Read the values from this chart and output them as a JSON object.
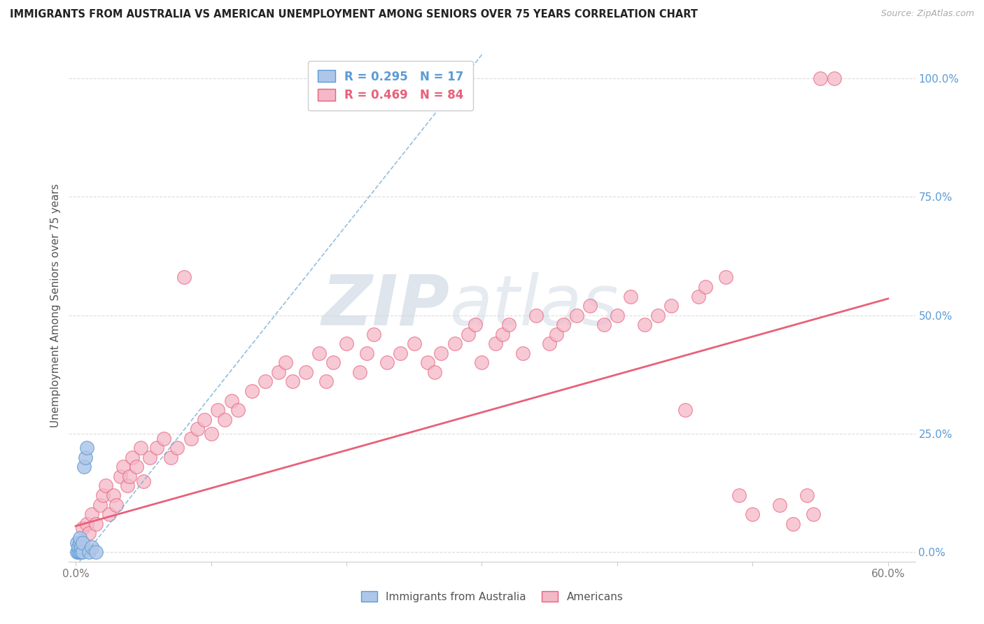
{
  "title": "IMMIGRANTS FROM AUSTRALIA VS AMERICAN UNEMPLOYMENT AMONG SENIORS OVER 75 YEARS CORRELATION CHART",
  "source": "Source: ZipAtlas.com",
  "ylabel": "Unemployment Among Seniors over 75 years",
  "australia_R": 0.295,
  "australia_N": 17,
  "americans_R": 0.469,
  "americans_N": 84,
  "australia_color": "#aec6e8",
  "australia_edge_color": "#5b9bd5",
  "americans_color": "#f4b8c8",
  "americans_edge_color": "#e8607a",
  "australia_line_color": "#7aafd4",
  "americans_line_color": "#e8607a",
  "background_color": "#ffffff",
  "watermark_zip": "ZIP",
  "watermark_atlas": "atlas",
  "grid_color": "#d8d8d8",
  "xlim": [
    -0.005,
    0.62
  ],
  "ylim": [
    -0.02,
    1.06
  ],
  "australia_x": [
    0.001,
    0.001,
    0.002,
    0.002,
    0.003,
    0.003,
    0.003,
    0.004,
    0.004,
    0.005,
    0.005,
    0.006,
    0.007,
    0.008,
    0.01,
    0.012,
    0.015
  ],
  "australia_y": [
    0.0,
    0.02,
    0.0,
    0.01,
    0.0,
    0.02,
    0.03,
    0.0,
    0.01,
    0.0,
    0.02,
    0.18,
    0.2,
    0.22,
    0.0,
    0.01,
    0.0
  ],
  "americans_x": [
    0.005,
    0.008,
    0.01,
    0.012,
    0.015,
    0.018,
    0.02,
    0.022,
    0.025,
    0.028,
    0.03,
    0.033,
    0.035,
    0.038,
    0.04,
    0.042,
    0.045,
    0.048,
    0.05,
    0.055,
    0.06,
    0.065,
    0.07,
    0.075,
    0.08,
    0.085,
    0.09,
    0.095,
    0.1,
    0.105,
    0.11,
    0.115,
    0.12,
    0.13,
    0.14,
    0.15,
    0.155,
    0.16,
    0.17,
    0.18,
    0.185,
    0.19,
    0.2,
    0.21,
    0.215,
    0.22,
    0.23,
    0.24,
    0.25,
    0.26,
    0.265,
    0.27,
    0.28,
    0.29,
    0.295,
    0.3,
    0.31,
    0.315,
    0.32,
    0.33,
    0.34,
    0.35,
    0.355,
    0.36,
    0.37,
    0.38,
    0.39,
    0.4,
    0.41,
    0.42,
    0.43,
    0.44,
    0.45,
    0.46,
    0.465,
    0.48,
    0.49,
    0.5,
    0.52,
    0.53,
    0.54,
    0.545,
    0.55,
    0.56
  ],
  "americans_y": [
    0.05,
    0.06,
    0.04,
    0.08,
    0.06,
    0.1,
    0.12,
    0.14,
    0.08,
    0.12,
    0.1,
    0.16,
    0.18,
    0.14,
    0.16,
    0.2,
    0.18,
    0.22,
    0.15,
    0.2,
    0.22,
    0.24,
    0.2,
    0.22,
    0.58,
    0.24,
    0.26,
    0.28,
    0.25,
    0.3,
    0.28,
    0.32,
    0.3,
    0.34,
    0.36,
    0.38,
    0.4,
    0.36,
    0.38,
    0.42,
    0.36,
    0.4,
    0.44,
    0.38,
    0.42,
    0.46,
    0.4,
    0.42,
    0.44,
    0.4,
    0.38,
    0.42,
    0.44,
    0.46,
    0.48,
    0.4,
    0.44,
    0.46,
    0.48,
    0.42,
    0.5,
    0.44,
    0.46,
    0.48,
    0.5,
    0.52,
    0.48,
    0.5,
    0.54,
    0.48,
    0.5,
    0.52,
    0.3,
    0.54,
    0.56,
    0.58,
    0.12,
    0.08,
    0.1,
    0.06,
    0.12,
    0.08,
    1.0,
    1.0
  ],
  "aus_trendline_x0": 0.0,
  "aus_trendline_y0": -0.03,
  "aus_trendline_x1": 0.3,
  "aus_trendline_y1": 1.05,
  "am_trendline_x0": 0.0,
  "am_trendline_y0": 0.055,
  "am_trendline_x1": 0.6,
  "am_trendline_y1": 0.535
}
